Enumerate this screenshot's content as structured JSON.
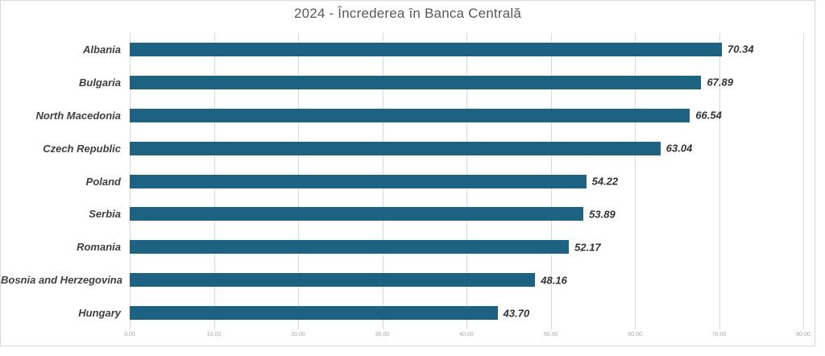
{
  "chart_data": {
    "type": "bar",
    "orientation": "horizontal",
    "title": "2024 - Încrederea în Banca Centrală",
    "categories": [
      "Albania",
      "Bulgaria",
      "North Macedonia",
      "Czech Republic",
      "Poland",
      "Serbia",
      "Romania",
      "Bosnia and Herzegovina",
      "Hungary"
    ],
    "values": [
      70.34,
      67.89,
      66.54,
      63.04,
      54.22,
      53.89,
      52.17,
      48.16,
      43.7
    ],
    "value_labels": [
      "70.34",
      "67.89",
      "66.54",
      "63.04",
      "54.22",
      "53.89",
      "52.17",
      "48.16",
      "43.70"
    ],
    "xlabel": "",
    "ylabel": "",
    "xlim": [
      0,
      80
    ],
    "x_ticks": [
      "0.00",
      "10.00",
      "20.00",
      "30.00",
      "40.00",
      "50.00",
      "60.00",
      "70.00",
      "80.00"
    ],
    "grid": true,
    "legend": false
  },
  "colors": {
    "bar": "#1C6282",
    "title_text": "#595959",
    "category_text": "#3F3F3F",
    "value_text": "#333333",
    "gridline": "#D9D9D9",
    "tick_text": "#A6A6A6",
    "frame_border": "#D9D9D9",
    "background": "#FFFFFF"
  }
}
